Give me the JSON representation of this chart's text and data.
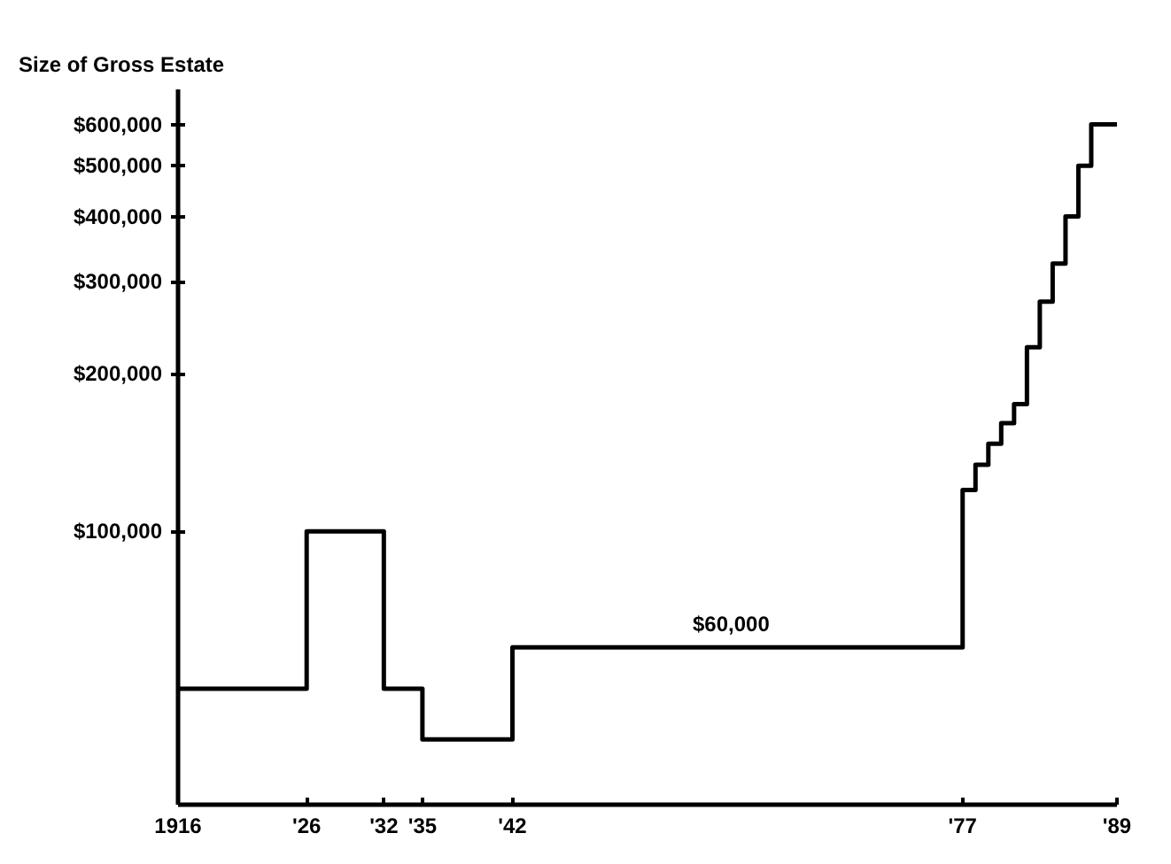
{
  "chart_data": {
    "type": "step",
    "ylabel": "Size of Gross Estate",
    "x": [
      1916,
      1926,
      1932,
      1935,
      1942,
      1977,
      1978,
      1979,
      1980,
      1981,
      1982,
      1983,
      1984,
      1985,
      1986,
      1987,
      1989
    ],
    "series": [
      {
        "color": "#000000",
        "values": [
          50000,
          100000,
          50000,
          40000,
          60000,
          120000,
          134000,
          147000,
          161000,
          175000,
          225000,
          275000,
          325000,
          400000,
          500000,
          600000,
          600000
        ]
      }
    ],
    "log": "y",
    "ylim": [
      30000,
      700000
    ],
    "yticks": [
      {
        "value": 100000,
        "label": "$100,000"
      },
      {
        "value": 200000,
        "label": "$200,000"
      },
      {
        "value": 300000,
        "label": "$300,000"
      },
      {
        "value": 400000,
        "label": "$400,000"
      },
      {
        "value": 500000,
        "label": "$500,000"
      },
      {
        "value": 600000,
        "label": "$600,000"
      }
    ],
    "xlim": [
      1916,
      1989
    ],
    "xticks": [
      1916,
      {
        "value": 1926,
        "label": "'26"
      },
      {
        "value": 1932,
        "label": "'32"
      },
      {
        "value": 1935,
        "label": "'35"
      },
      {
        "value": 1942,
        "label": "'42"
      },
      {
        "value": 1977,
        "label": "'77"
      },
      {
        "value": 1989,
        "label": "'89"
      }
    ],
    "annotations": [
      {
        "text": "$60,000",
        "x": 1959,
        "y": 60000
      }
    ],
    "grid": false
  }
}
